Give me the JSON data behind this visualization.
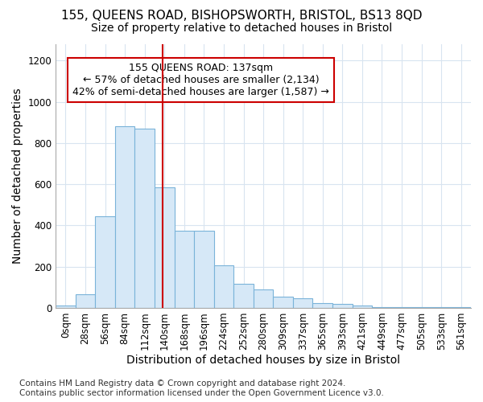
{
  "title": "155, QUEENS ROAD, BISHOPSWORTH, BRISTOL, BS13 8QD",
  "subtitle": "Size of property relative to detached houses in Bristol",
  "xlabel": "Distribution of detached houses by size in Bristol",
  "ylabel": "Number of detached properties",
  "footer_line1": "Contains HM Land Registry data © Crown copyright and database right 2024.",
  "footer_line2": "Contains public sector information licensed under the Open Government Licence v3.0.",
  "bar_labels": [
    "0sqm",
    "28sqm",
    "56sqm",
    "84sqm",
    "112sqm",
    "140sqm",
    "168sqm",
    "196sqm",
    "224sqm",
    "252sqm",
    "280sqm",
    "309sqm",
    "337sqm",
    "365sqm",
    "393sqm",
    "421sqm",
    "449sqm",
    "477sqm",
    "505sqm",
    "533sqm",
    "561sqm"
  ],
  "bar_values": [
    12,
    65,
    445,
    880,
    870,
    585,
    375,
    375,
    205,
    115,
    90,
    55,
    45,
    22,
    18,
    10,
    5,
    5,
    3,
    2,
    2
  ],
  "bar_color": "#d6e8f7",
  "bar_edge_color": "#7ab3d9",
  "annotation_box_text": "155 QUEENS ROAD: 137sqm\n← 57% of detached houses are smaller (2,134)\n42% of semi-detached houses are larger (1,587) →",
  "vline_x": 4.89,
  "vline_color": "#cc0000",
  "annotation_box_color": "#cc0000",
  "annotation_box_facecolor": "white",
  "ylim": [
    0,
    1280
  ],
  "yticks": [
    0,
    200,
    400,
    600,
    800,
    1000,
    1200
  ],
  "title_fontsize": 11,
  "subtitle_fontsize": 10,
  "axis_label_fontsize": 10,
  "tick_fontsize": 8.5,
  "annotation_fontsize": 9,
  "footer_fontsize": 7.5,
  "background_color": "#ffffff",
  "grid_color": "#d8e4f0"
}
